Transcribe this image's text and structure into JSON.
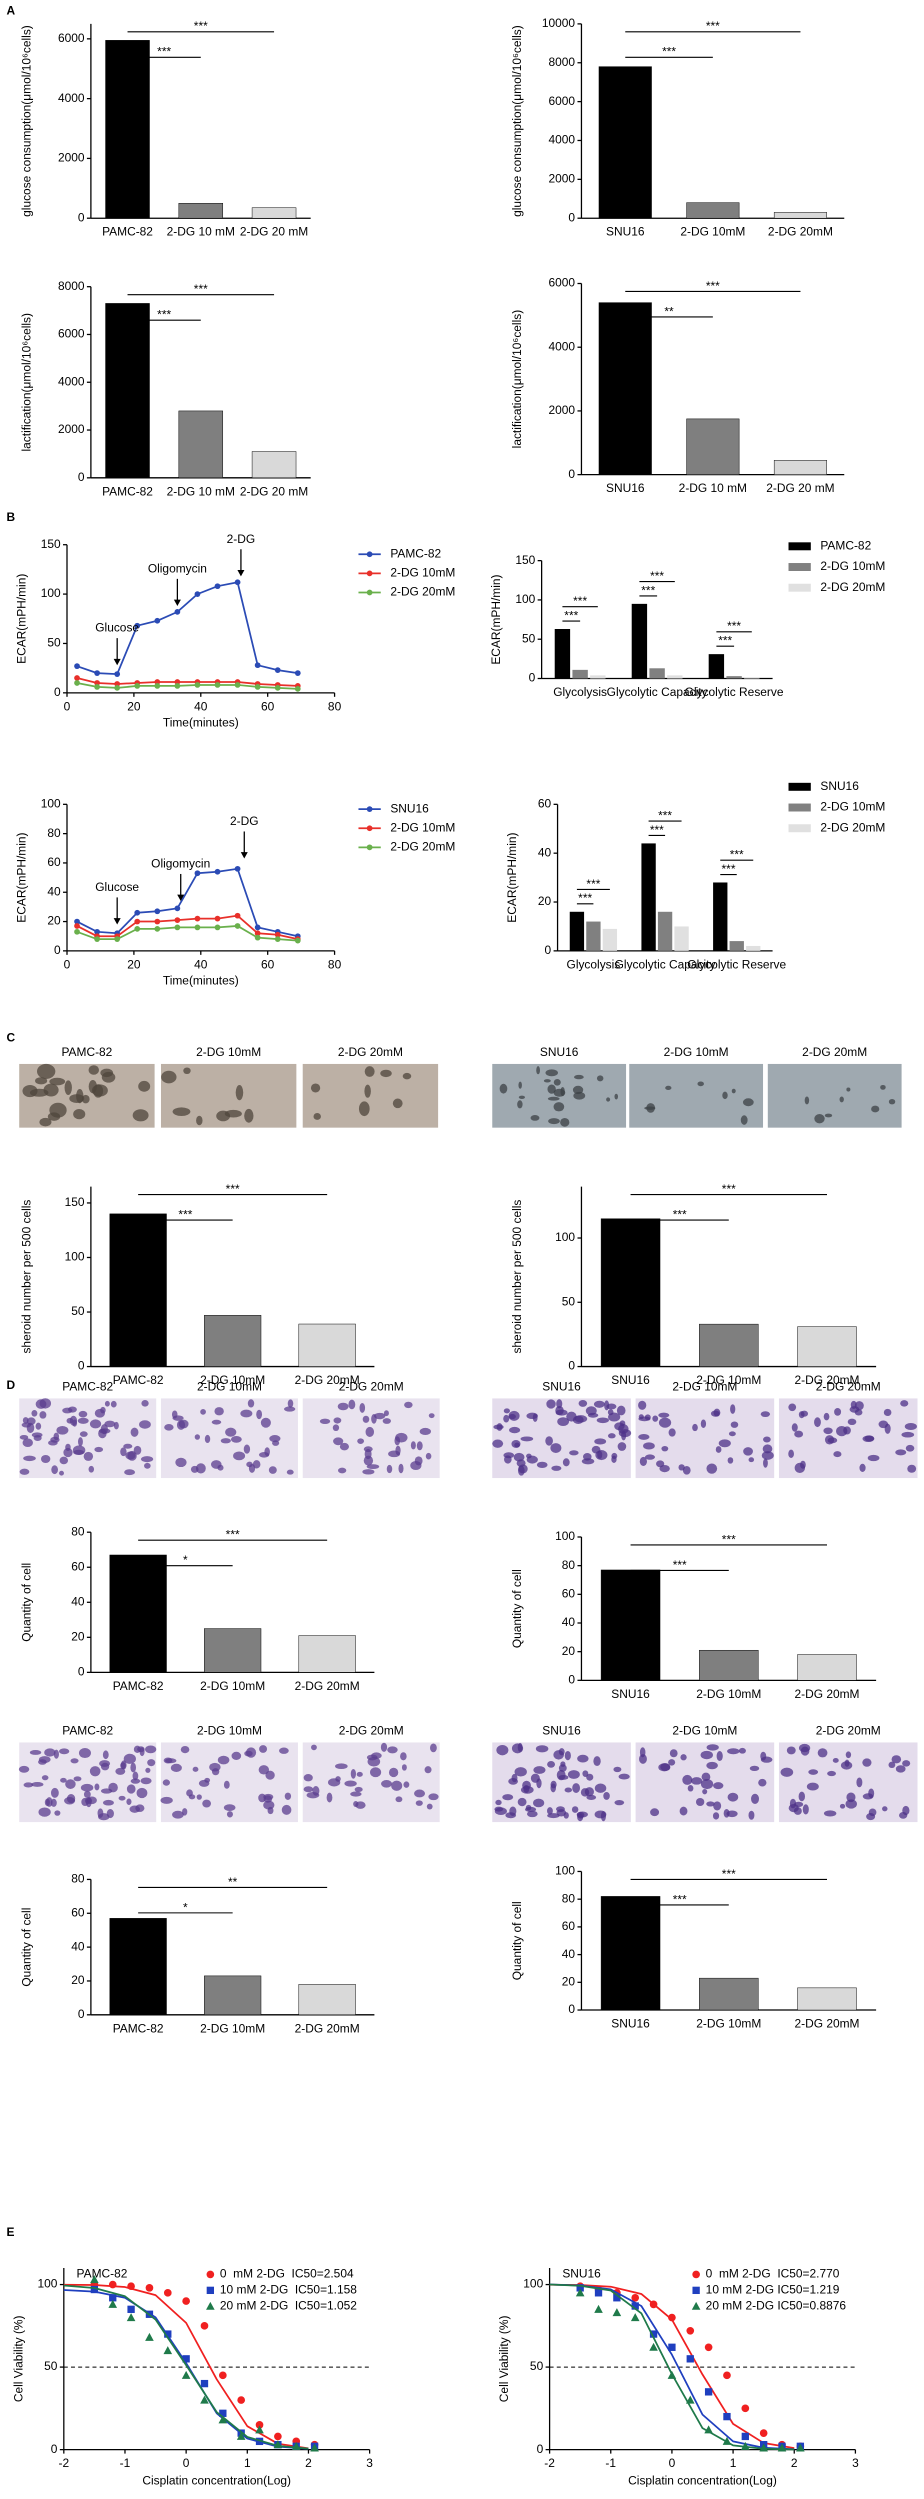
{
  "panel_labels": [
    "A",
    "B",
    "C",
    "D",
    "E"
  ],
  "image_rows": [
    {
      "labels": [
        "PAMC-82",
        "2-DG 10mM",
        "2-DG 20mM"
      ]
    },
    {
      "labels": [
        "SNU16",
        "2-DG 10mM",
        "2-DG 20mM"
      ]
    },
    {
      "labels": [
        "PAMC-82",
        "2-DG 10mM",
        "2-DG 20mM"
      ]
    },
    {
      "labels": [
        "SNU16",
        "2-DG 10mM",
        "2-DG 20mM"
      ]
    },
    {
      "labels": [
        "PAMC-82",
        "2-DG 10mM",
        "2-DG 20mM"
      ]
    },
    {
      "labels": [
        "SNU16",
        "2-DG 10mM",
        "2-DG 20mM"
      ]
    }
  ],
  "chart_data": [
    {
      "type": "bar",
      "ylabel": "glucose consumption(μmol/10⁶cells)",
      "categories": [
        "PAMC-82",
        "2-DG 10 mM",
        "2-DG 20 mM"
      ],
      "values": [
        5950,
        500,
        350
      ],
      "colors": [
        "#000000",
        "#7f7f7f",
        "#d9d9d9"
      ],
      "ylim": [
        0,
        6500
      ],
      "yticks": [
        0,
        2000,
        4000,
        6000
      ],
      "significance": [
        "***",
        "***"
      ]
    },
    {
      "type": "bar",
      "ylabel": "glucose consumption(μmol/10⁶cells)",
      "categories": [
        "SNU16",
        "2-DG 10mM",
        "2-DG 20mM"
      ],
      "values": [
        7800,
        800,
        300
      ],
      "colors": [
        "#000000",
        "#7f7f7f",
        "#d9d9d9"
      ],
      "ylim": [
        0,
        10000
      ],
      "yticks": [
        0,
        2000,
        4000,
        6000,
        8000,
        10000
      ],
      "significance": [
        "***",
        "***"
      ]
    },
    {
      "type": "bar",
      "ylabel": "lactification(μmol/10⁶cells)",
      "categories": [
        "PAMC-82",
        "2-DG 10 mM",
        "2-DG 20 mM"
      ],
      "values": [
        7300,
        2800,
        1100
      ],
      "colors": [
        "#000000",
        "#7f7f7f",
        "#d9d9d9"
      ],
      "ylim": [
        0,
        8000
      ],
      "yticks": [
        0,
        2000,
        4000,
        6000,
        8000
      ],
      "significance": [
        "***",
        "***"
      ]
    },
    {
      "type": "bar",
      "ylabel": "lactification(μmol/10⁶cells)",
      "categories": [
        "SNU16",
        "2-DG 10 mM",
        "2-DG 20 mM"
      ],
      "values": [
        5400,
        1750,
        450
      ],
      "colors": [
        "#000000",
        "#7f7f7f",
        "#d9d9d9"
      ],
      "ylim": [
        0,
        6000
      ],
      "yticks": [
        0,
        2000,
        4000,
        6000
      ],
      "significance": [
        "**",
        "***"
      ]
    },
    {
      "type": "line",
      "ylabel": "ECAR(mPH/min)",
      "xlabel": "Time(minutes)",
      "x": [
        3,
        9,
        15,
        21,
        27,
        33,
        39,
        45,
        51,
        57,
        63,
        69
      ],
      "series": [
        {
          "name": "PAMC-82",
          "color": "#2b4bb5",
          "values": [
            27,
            20,
            19,
            68,
            73,
            82,
            100,
            108,
            112,
            28,
            23,
            20
          ]
        },
        {
          "name": "2-DG 10mM",
          "color": "#e8302a",
          "values": [
            15,
            10,
            9,
            10,
            11,
            11,
            11,
            11,
            11,
            9,
            8,
            7
          ]
        },
        {
          "name": "2-DG 20mM",
          "color": "#6ab04c",
          "values": [
            10,
            6,
            5,
            7,
            7,
            7,
            8,
            8,
            8,
            6,
            5,
            4
          ]
        }
      ],
      "xlim": [
        0,
        80
      ],
      "xticks": [
        0,
        20,
        40,
        60,
        80
      ],
      "ylim": [
        0,
        150
      ],
      "yticks": [
        0,
        50,
        100,
        150
      ],
      "annotations": [
        {
          "text": "Glucose",
          "x": 15,
          "y": 28
        },
        {
          "text": "Oligomycin",
          "x": 33,
          "y": 88
        },
        {
          "text": "2-DG",
          "x": 52,
          "y": 118
        }
      ]
    },
    {
      "type": "bar",
      "ylabel": "ECAR(mPH/min)",
      "categories": [
        "Glycolysis",
        "Glycolytic Capacity",
        "Glycolytic Reserve"
      ],
      "series": [
        {
          "name": "PAMC-82",
          "color": "#000000",
          "values": [
            63,
            95,
            31
          ]
        },
        {
          "name": "2-DG 10mM",
          "color": "#808080",
          "values": [
            11,
            13,
            3
          ]
        },
        {
          "name": "2-DG 20mM",
          "color": "#e0e0e0",
          "values": [
            4,
            4,
            1
          ]
        }
      ],
      "ylim": [
        0,
        150
      ],
      "yticks": [
        0,
        50,
        100,
        150
      ],
      "significance": [
        [
          "***",
          "***"
        ],
        [
          "***",
          "***"
        ],
        [
          "***",
          "***"
        ]
      ]
    },
    {
      "type": "line",
      "ylabel": "ECAR(mPH/min)",
      "xlabel": "Time(minutes)",
      "x": [
        3,
        9,
        15,
        21,
        27,
        33,
        39,
        45,
        51,
        57,
        63,
        69
      ],
      "series": [
        {
          "name": "SNU16",
          "color": "#2b4bb5",
          "values": [
            20,
            13,
            12,
            26,
            27,
            29,
            53,
            54,
            56,
            16,
            13,
            10
          ]
        },
        {
          "name": "2-DG 10mM",
          "color": "#e8302a",
          "values": [
            17,
            10,
            10,
            20,
            20,
            21,
            22,
            22,
            24,
            12,
            11,
            8
          ]
        },
        {
          "name": "2-DG 20mM",
          "color": "#6ab04c",
          "values": [
            13,
            8,
            8,
            15,
            15,
            16,
            16,
            16,
            17,
            9,
            8,
            7
          ]
        }
      ],
      "xlim": [
        0,
        80
      ],
      "xticks": [
        0,
        20,
        40,
        60,
        80
      ],
      "ylim": [
        0,
        100
      ],
      "yticks": [
        0,
        20,
        40,
        60,
        80,
        100
      ],
      "annotations": [
        {
          "text": "Glucose",
          "x": 15,
          "y": 18
        },
        {
          "text": "Oligomycin",
          "x": 34,
          "y": 34
        },
        {
          "text": "2-DG",
          "x": 53,
          "y": 63
        }
      ]
    },
    {
      "type": "bar",
      "ylabel": "ECAR(mPH/min)",
      "categories": [
        "Glycolysis",
        "Glycolytic Capacity",
        "Glycolytic Reserve"
      ],
      "series": [
        {
          "name": "SNU16",
          "color": "#000000",
          "values": [
            16,
            44,
            28
          ]
        },
        {
          "name": "2-DG 10mM",
          "color": "#808080",
          "values": [
            12,
            16,
            4
          ]
        },
        {
          "name": "2-DG 20mM",
          "color": "#e0e0e0",
          "values": [
            9,
            10,
            2
          ]
        }
      ],
      "ylim": [
        0,
        60
      ],
      "yticks": [
        0,
        20,
        40,
        60
      ],
      "significance": [
        [
          "***",
          "***"
        ],
        [
          "***",
          "***"
        ],
        [
          "***",
          "***"
        ]
      ]
    },
    {
      "type": "bar",
      "ylabel": "sheroid number per 500 cells",
      "categories": [
        "PAMC-82",
        "2-DG 10mM",
        "2-DG 20mM"
      ],
      "values": [
        140,
        47,
        39
      ],
      "colors": [
        "#000000",
        "#7f7f7f",
        "#d9d9d9"
      ],
      "ylim": [
        0,
        165
      ],
      "yticks": [
        0,
        50,
        100,
        150
      ],
      "significance": [
        "***",
        "***"
      ]
    },
    {
      "type": "bar",
      "ylabel": "sheroid number per 500 cells",
      "categories": [
        "SNU16",
        "2-DG 10mM",
        "2-DG 20mM"
      ],
      "values": [
        115,
        33,
        31
      ],
      "colors": [
        "#000000",
        "#7f7f7f",
        "#d9d9d9"
      ],
      "ylim": [
        0,
        140
      ],
      "yticks": [
        0,
        50,
        100
      ],
      "significance": [
        "***",
        "***"
      ]
    },
    {
      "type": "bar",
      "ylabel": "Quantity of cell",
      "categories": [
        "PAMC-82",
        "2-DG 10mM",
        "2-DG 20mM"
      ],
      "values": [
        67,
        25,
        21
      ],
      "colors": [
        "#000000",
        "#7f7f7f",
        "#d9d9d9"
      ],
      "ylim": [
        0,
        80
      ],
      "yticks": [
        0,
        20,
        40,
        60,
        80
      ],
      "significance": [
        "*",
        "***"
      ]
    },
    {
      "type": "bar",
      "ylabel": "Quantity of cell",
      "categories": [
        "SNU16",
        "2-DG 10mM",
        "2-DG 20mM"
      ],
      "values": [
        77,
        21,
        18
      ],
      "colors": [
        "#000000",
        "#7f7f7f",
        "#d9d9d9"
      ],
      "ylim": [
        0,
        100
      ],
      "yticks": [
        0,
        20,
        40,
        60,
        80,
        100
      ],
      "significance": [
        "***",
        "***"
      ]
    },
    {
      "type": "bar",
      "ylabel": "Quantity of cell",
      "categories": [
        "PAMC-82",
        "2-DG 10mM",
        "2-DG 20mM"
      ],
      "values": [
        57,
        23,
        18
      ],
      "colors": [
        "#000000",
        "#7f7f7f",
        "#d9d9d9"
      ],
      "ylim": [
        0,
        80
      ],
      "yticks": [
        0,
        20,
        40,
        60,
        80
      ],
      "significance": [
        "*",
        "**"
      ]
    },
    {
      "type": "bar",
      "ylabel": "Quantity of cell",
      "categories": [
        "SNU16",
        "2-DG 10mM",
        "2-DG 20mM"
      ],
      "values": [
        82,
        23,
        16
      ],
      "colors": [
        "#000000",
        "#7f7f7f",
        "#d9d9d9"
      ],
      "ylim": [
        0,
        100
      ],
      "yticks": [
        0,
        20,
        40,
        60,
        80,
        100
      ],
      "significance": [
        "***",
        "***"
      ]
    },
    {
      "type": "scatter",
      "title": "PAMC-82",
      "ylabel": "Cell Viability (%)",
      "xlabel": "Cisplatin concentration(Log)",
      "x": [
        -1.5,
        -1.2,
        -0.9,
        -0.6,
        -0.3,
        0,
        0.3,
        0.6,
        0.9,
        1.2,
        1.5,
        1.8,
        2.1
      ],
      "fit_x": [
        -2,
        -1.5,
        -1,
        -0.5,
        0,
        0.5,
        1,
        1.5,
        2
      ],
      "series": [
        {
          "name": "0  mM 2-DG  IC50=2.504",
          "color": "#f02020",
          "marker": "circle",
          "values": [
            100,
            100,
            99,
            98,
            95,
            90,
            75,
            45,
            30,
            15,
            8,
            5,
            3
          ],
          "fit": [
            99.9,
            99.7,
            98.5,
            93.6,
            76.8,
            42.6,
            14.2,
            3.6,
            0.8
          ]
        },
        {
          "name": "10 mM 2-DG  IC50=1.158",
          "color": "#1f3fbf",
          "marker": "square",
          "values": [
            97,
            92,
            85,
            82,
            70,
            55,
            40,
            22,
            10,
            5,
            3,
            2,
            2
          ],
          "fit": [
            96.7,
            95.7,
            92,
            80.1,
            52.4,
            22,
            6.7,
            1.8,
            0.5
          ]
        },
        {
          "name": "20 mM 2-DG  IC50=1.052",
          "color": "#1f7a4a",
          "marker": "triangle",
          "values": [
            103,
            88,
            80,
            68,
            60,
            45,
            30,
            18,
            8,
            12,
            3,
            2,
            1
          ],
          "fit": [
            99.4,
            97.9,
            92.9,
            78.8,
            51.2,
            22.7,
            7.7,
            2.3,
            0.6
          ]
        }
      ],
      "xlim": [
        -2,
        3
      ],
      "xticks": [
        -2,
        -1,
        0,
        1,
        2,
        3
      ],
      "ylim": [
        0,
        110
      ],
      "yticks": [
        0,
        50,
        100
      ],
      "reference_line": 50
    },
    {
      "type": "scatter",
      "title": "SNU16",
      "ylabel": "Cell Viability (%)",
      "xlabel": "Cisplatin concentration(Log)",
      "x": [
        -1.5,
        -1.2,
        -0.9,
        -0.6,
        -0.3,
        0,
        0.3,
        0.6,
        0.9,
        1.2,
        1.5,
        1.8,
        2.1
      ],
      "fit_x": [
        -2,
        -1.5,
        -1,
        -0.5,
        0,
        0.5,
        1,
        1.5,
        2
      ],
      "series": [
        {
          "name": "0  mM 2-DG  IC50=2.770",
          "color": "#f02020",
          "marker": "circle",
          "values": [
            99,
            97,
            95,
            92,
            88,
            80,
            72,
            62,
            45,
            25,
            10,
            3,
            2
          ],
          "fit": [
            99.9,
            99.7,
            98.7,
            94.3,
            78.8,
            45.5,
            15.6,
            4,
            0.9
          ]
        },
        {
          "name": "10 mM 2-DG IC50=1.219",
          "color": "#1f3fbf",
          "marker": "square",
          "values": [
            98,
            95,
            92,
            87,
            70,
            62,
            55,
            35,
            20,
            8,
            3,
            2,
            2
          ],
          "fit": [
            100,
            99.4,
            97.1,
            87,
            57.5,
            21.2,
            5,
            1.1,
            0.2
          ]
        },
        {
          "name": "20 mM 2-DG IC50=0.8876",
          "color": "#1f7a4a",
          "marker": "triangle",
          "values": [
            95,
            85,
            83,
            80,
            62,
            45,
            30,
            12,
            5,
            2,
            1,
            1,
            1
          ],
          "fit": [
            100,
            99.3,
            96.4,
            82.6,
            45.7,
            13,
            2.6,
            0.5,
            0.1
          ]
        }
      ],
      "xlim": [
        -2,
        3
      ],
      "xticks": [
        -2,
        -1,
        0,
        1,
        2,
        3
      ],
      "ylim": [
        0,
        110
      ],
      "yticks": [
        0,
        50,
        100
      ],
      "reference_line": 50
    }
  ]
}
